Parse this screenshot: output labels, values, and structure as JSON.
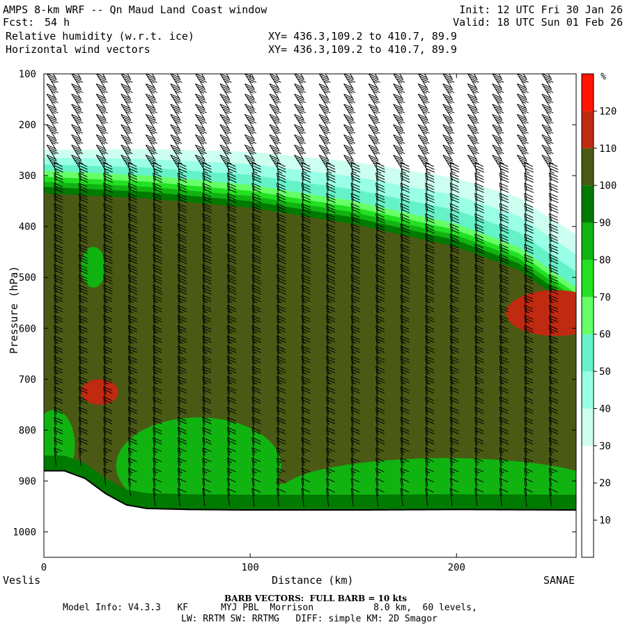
{
  "header": {
    "title": "AMPS 8-km WRF -- Qn Maud Land Coast window",
    "fcst_label": "Fcst:",
    "fcst_value": "54 h",
    "init": "Init: 12 UTC Fri 30 Jan 26",
    "valid": "Valid: 18 UTC Sun 01 Feb 26",
    "field1": "Relative humidity (w.r.t. ice)",
    "field2": "Horizontal wind vectors",
    "xy1": "XY= 436.3,109.2 to 410.7, 89.9",
    "xy2": "XY= 436.3,109.2 to 410.7, 89.9"
  },
  "footer": {
    "left_end": "Veslis",
    "right_end": "SANAE",
    "barb_note": "BARB VECTORS:  FULL BARB = 10 kts",
    "model_info": "Model Info: V4.3.3   KF      MYJ PBL  Morrison           8.0 km,  60 levels,",
    "physics": "LW: RRTM SW: RRTMG   DIFF: simple KM: 2D Smagor"
  },
  "chart_data": {
    "type": "heatmap",
    "title": "Relative humidity (w.r.t. ice) cross-section with horizontal wind vectors",
    "xlabel": "Distance (km)",
    "ylabel": "Pressure (hPa)",
    "xlim": [
      0,
      258
    ],
    "ylim": [
      1050,
      100
    ],
    "x_ticks": [
      0,
      100,
      200
    ],
    "y_ticks": [
      100,
      200,
      300,
      400,
      500,
      600,
      700,
      800,
      900,
      1000
    ],
    "colorbar": {
      "unit": "%",
      "levels": [
        10,
        20,
        30,
        40,
        50,
        60,
        70,
        80,
        90,
        100,
        110,
        120
      ],
      "colors": [
        "#ffffff",
        "#ffffff",
        "#ffffff",
        "#ccfff0",
        "#99ffe6",
        "#66f2c8",
        "#66ff66",
        "#22e022",
        "#11b311",
        "#007a00",
        "#4a5a14",
        "#c02a10",
        "#ff1500"
      ]
    },
    "terrain_pressure_hpa": [
      {
        "x": 0,
        "p": 880
      },
      {
        "x": 10,
        "p": 880
      },
      {
        "x": 20,
        "p": 895
      },
      {
        "x": 30,
        "p": 925
      },
      {
        "x": 40,
        "p": 947
      },
      {
        "x": 50,
        "p": 954
      },
      {
        "x": 70,
        "p": 956
      },
      {
        "x": 100,
        "p": 957
      },
      {
        "x": 150,
        "p": 957
      },
      {
        "x": 200,
        "p": 956
      },
      {
        "x": 258,
        "p": 957
      }
    ],
    "moist_layer_top_hpa": [
      {
        "x": 0,
        "p": 290
      },
      {
        "x": 50,
        "p": 300
      },
      {
        "x": 100,
        "p": 318
      },
      {
        "x": 150,
        "p": 350
      },
      {
        "x": 200,
        "p": 395
      },
      {
        "x": 230,
        "p": 440
      },
      {
        "x": 258,
        "p": 520
      }
    ],
    "wind_barbs": {
      "columns_km": [
        6,
        18,
        30,
        42,
        54,
        66,
        78,
        90,
        102,
        114,
        126,
        138,
        150,
        162,
        174,
        186,
        198,
        210,
        222,
        234,
        246
      ],
      "levels_hpa": [
        110,
        130,
        150,
        170,
        190,
        210,
        230,
        250,
        270,
        290,
        310,
        330,
        350,
        370,
        390,
        410,
        430,
        450,
        470,
        490,
        510,
        530,
        550,
        570,
        590,
        610,
        630,
        650,
        670,
        690,
        710,
        730,
        750,
        770,
        790,
        810,
        830,
        850,
        870,
        890,
        910,
        930,
        950
      ],
      "speed_kts": [
        35,
        35,
        35,
        35,
        35,
        35,
        35,
        35,
        35,
        35,
        35,
        30,
        30,
        30,
        30,
        30,
        30,
        30,
        30,
        30,
        30,
        30,
        30,
        25,
        25,
        25,
        25,
        25,
        25,
        25,
        25,
        25,
        20,
        20,
        20,
        20,
        20,
        20,
        15,
        15,
        15,
        10,
        10
      ]
    }
  }
}
